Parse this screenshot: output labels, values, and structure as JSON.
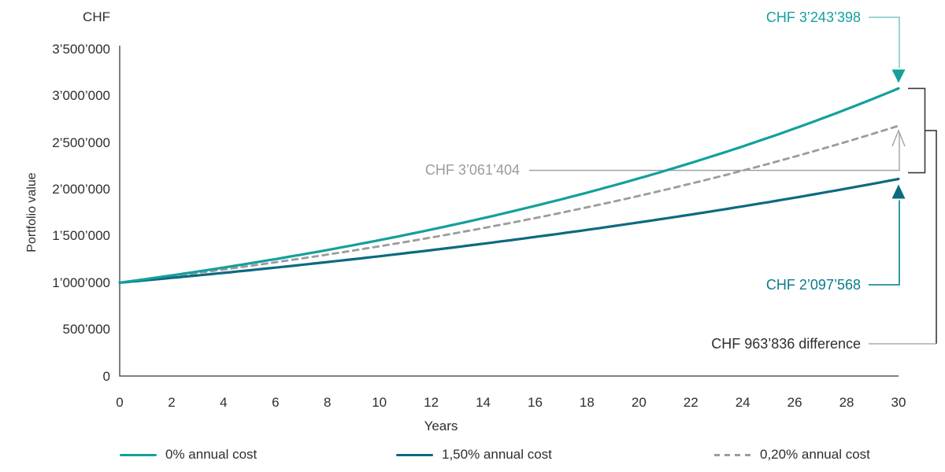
{
  "page": {
    "background_color": "#ffffff"
  },
  "chart_data": {
    "type": "line",
    "title": "",
    "y_unit_label": "CHF",
    "x_axis": {
      "label": "Years",
      "range": [
        0,
        30
      ],
      "ticks": [
        0,
        2,
        4,
        6,
        8,
        10,
        12,
        14,
        16,
        18,
        20,
        22,
        24,
        26,
        28,
        30
      ]
    },
    "y_axis": {
      "label": "Portfolio value",
      "range": [
        0,
        3500000
      ],
      "tick_step": 500000,
      "tick_labels": [
        "3’500’000",
        "3’000’000",
        "2’500’000",
        "2’000’000",
        "1’500’000",
        "1’000’000",
        "500’000",
        "0"
      ]
    },
    "start_value": 1000000,
    "years": 30,
    "series": [
      {
        "name": "0% annual cost",
        "color": "#14A09B",
        "line_style": "solid",
        "end_value": 3243398,
        "end_label": "CHF 3’243’398"
      },
      {
        "name": "0,20% annual cost",
        "color": "#9C9C9C",
        "line_style": "dashed",
        "end_value": 3061404,
        "end_label": "CHF 3’061’404"
      },
      {
        "name": "1,50% annual cost",
        "color": "#0C6A80",
        "line_style": "solid",
        "end_value": 2097568,
        "end_label": "CHF 2’097’568"
      }
    ],
    "difference": {
      "value": 963836,
      "label": "CHF 963’836 difference",
      "between": [
        "0,20% annual cost",
        "1,50% annual cost"
      ]
    },
    "legend": [
      {
        "label": "0% annual cost",
        "color": "#14A09B",
        "line_style": "solid"
      },
      {
        "label": "1,50% annual cost",
        "color": "#0C6A80",
        "line_style": "solid"
      },
      {
        "label": "0,20% annual cost",
        "color": "#9C9C9C",
        "line_style": "dashed"
      }
    ],
    "layout": {
      "legend_position": "bottom",
      "grid": false,
      "plot_not_to_scale": true,
      "drawn_end_values": {
        "0% annual cost": 3080000,
        "0,20% annual cost": 2680000,
        "1,50% annual cost": 2110000
      },
      "curve_shape": "exponential growth from start_value at year 0 to end value at year 30"
    },
    "annotation_colors": {
      "top_connector": "#8FD0CC",
      "middle_connector": "#9C9C9C",
      "bottom_connector": "#1D8C9E",
      "bracket": "#3A3A3A",
      "difference_line": "#9C9C9C",
      "axis": "#55565A"
    }
  }
}
